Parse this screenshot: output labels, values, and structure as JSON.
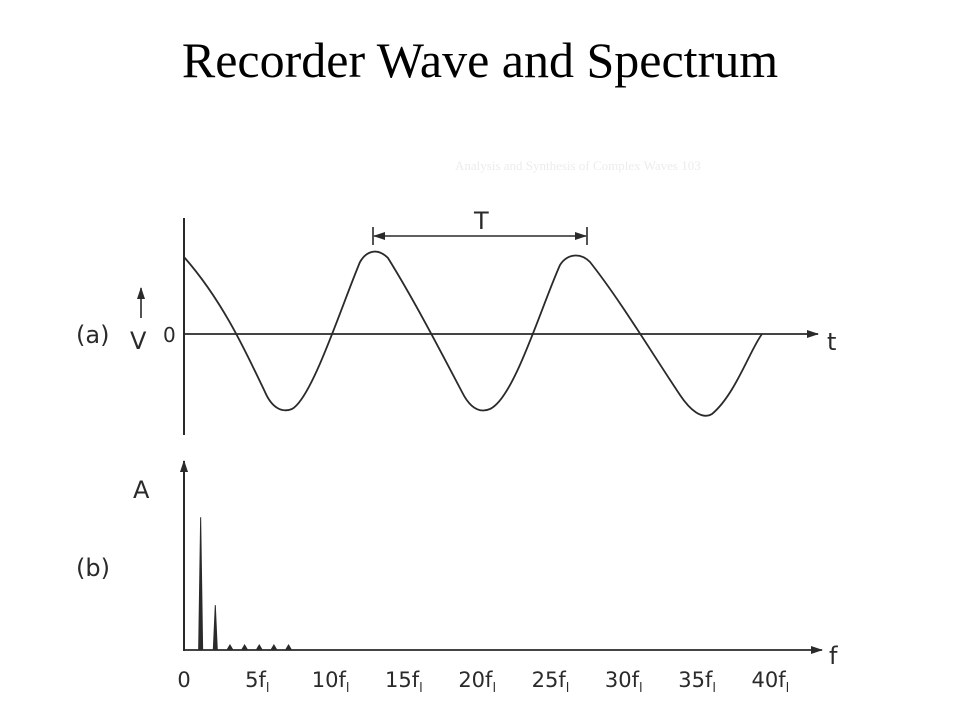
{
  "title": "Recorder Wave and Spectrum",
  "faint_caption": "Analysis and Synthesis of Complex Waves   103",
  "panel_a": {
    "label": "(a)",
    "y_axis_label": "V",
    "zero_label": "0",
    "x_axis_label": "t",
    "period_label": "T"
  },
  "panel_b": {
    "label": "(b)",
    "y_axis_label": "A",
    "x_axis_label": "f"
  },
  "chart_data": {
    "type": "bar",
    "x_unit": "f₁",
    "x_ticks": [
      {
        "label": "0"
      },
      {
        "label": "5f",
        "sub": "l"
      },
      {
        "label": "10f",
        "sub": "l"
      },
      {
        "label": "15f",
        "sub": "l"
      },
      {
        "label": "20f",
        "sub": "l"
      },
      {
        "label": "25f",
        "sub": "l"
      },
      {
        "label": "30f",
        "sub": "l"
      },
      {
        "label": "35f",
        "sub": "l"
      },
      {
        "label": "40f",
        "sub": "l"
      }
    ],
    "harmonics": [
      1,
      2,
      3,
      4,
      5,
      6,
      7
    ],
    "values": [
      0.83,
      0.28,
      0.03,
      0.03,
      0.03,
      0.03,
      0.03
    ],
    "ylabel": "A",
    "xlabel": "f"
  },
  "colors": {
    "ink": "#2a2a2a",
    "background": "#ffffff"
  }
}
